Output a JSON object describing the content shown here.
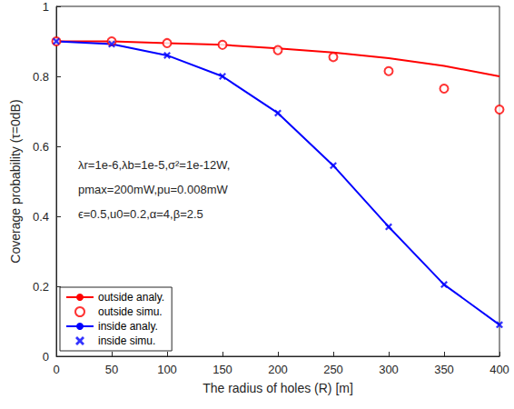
{
  "chart_data": {
    "type": "line",
    "x_label": "The radius of holes (R) [m]",
    "y_label": "Coverage probability (τ=0dB)",
    "x": [
      0,
      50,
      100,
      150,
      200,
      250,
      300,
      350,
      400
    ],
    "series": [
      {
        "name": "outside analy.",
        "type": "line",
        "color": "#ff0000",
        "line_style": "solid",
        "values": [
          0.9,
          0.9,
          0.895,
          0.89,
          0.88,
          0.868,
          0.852,
          0.83,
          0.8
        ]
      },
      {
        "name": "outside simu.",
        "type": "scatter",
        "color": "#ff0000",
        "marker": "o",
        "values": [
          0.9,
          0.9,
          0.895,
          0.89,
          0.875,
          0.855,
          0.815,
          0.765,
          0.705
        ]
      },
      {
        "name": "inside analy.",
        "type": "line",
        "color": "#0000ff",
        "line_style": "solid",
        "values": [
          0.9,
          0.892,
          0.86,
          0.8,
          0.695,
          0.545,
          0.37,
          0.205,
          0.09
        ]
      },
      {
        "name": "inside simu.",
        "type": "scatter",
        "color": "#0000ff",
        "marker": "x",
        "values": [
          0.9,
          0.892,
          0.86,
          0.8,
          0.695,
          0.545,
          0.37,
          0.205,
          0.09
        ]
      }
    ],
    "annotations": [
      "λr=1e-6,λb=1e-5,σ²=1e-12W,",
      "pmax=200mW,pu=0.008mW",
      "ϵ=0.5,u0=0.2,α=4,β=2.5"
    ],
    "xlim": [
      0,
      400
    ],
    "xticks": [
      0,
      50,
      100,
      150,
      200,
      250,
      300,
      350,
      400
    ],
    "ylim": [
      0,
      1
    ],
    "yticks": [
      0,
      0.2,
      0.4,
      0.6,
      0.8,
      1
    ],
    "grid": false,
    "legend": "lower left"
  }
}
